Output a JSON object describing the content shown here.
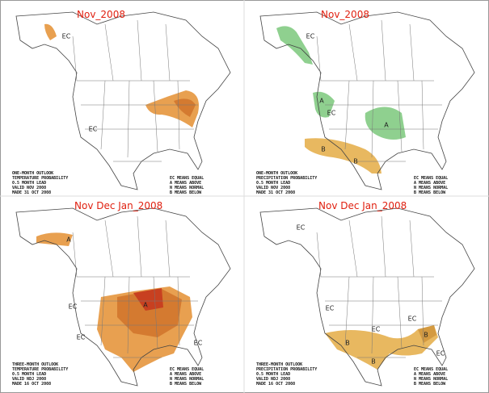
{
  "panels": [
    {
      "title": "Nov_2008",
      "labels": [
        "EC",
        "EC"
      ],
      "info": [
        "ONE-MONTH OUTLOOK",
        "TEMPERATURE PROBABILITY",
        "0.5 MONTH LEAD",
        "VALID NOV 2008",
        "MADE 31 OCT 2008"
      ],
      "legend": [
        "EC MEANS EQUAL",
        "A MEANS ABOVE",
        "N MEANS NORMAL",
        "B MEANS BELOW"
      ]
    },
    {
      "title": "Nov_2008",
      "labels": [
        "EC",
        "A",
        "EC",
        "A",
        "B",
        "B"
      ],
      "info": [
        "ONE-MONTH OUTLOOK",
        "PRECIPITATION PROBABILITY",
        "0.5 MONTH LEAD",
        "VALID NOV 2008",
        "MADE 31 OCT 2008"
      ],
      "legend": [
        "EC MEANS EQUAL",
        "A MEANS ABOVE",
        "N MEANS NORMAL",
        "B MEANS BELOW"
      ]
    },
    {
      "title": "Nov Dec Jan_2008",
      "labels": [
        "A",
        "EC",
        "EC",
        "A",
        "EC"
      ],
      "info": [
        "THREE-MONTH OUTLOOK",
        "TEMPERATURE PROBABILITY",
        "0.5 MONTH LEAD",
        "VALID NDJ 2008",
        "MADE 16 OCT 2008"
      ],
      "legend": [
        "EC MEANS EQUAL",
        "A MEANS ABOVE",
        "N MEANS NORMAL",
        "B MEANS BELOW"
      ]
    },
    {
      "title": "Nov Dec Jan_2008",
      "labels": [
        "EC",
        "EC",
        "EC",
        "EC",
        "B",
        "B",
        "B",
        "EC"
      ],
      "info": [
        "THREE-MONTH OUTLOOK",
        "PRECIPITATION PROBABILITY",
        "0.5 MONTH LEAD",
        "VALID NDJ 2008",
        "MADE 16 OCT 2008"
      ],
      "legend": [
        "EC MEANS EQUAL",
        "A MEANS ABOVE",
        "N MEANS NORMAL",
        "B MEANS BELOW"
      ]
    }
  ]
}
